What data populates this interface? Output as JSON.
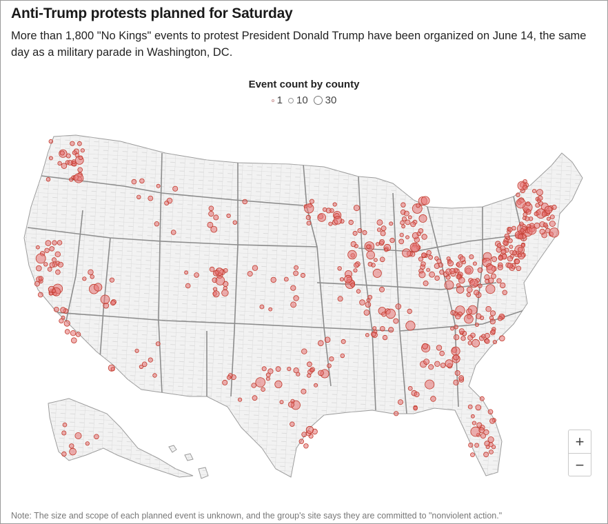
{
  "header": {
    "title": "Anti-Trump protests planned for Saturday",
    "subtitle": "More than 1,800 \"No Kings\" events to protest President Donald Trump have been organized on June 14, the same day as a military parade in Washington, DC."
  },
  "legend": {
    "title": "Event count by county",
    "items": [
      {
        "label": "1",
        "size": 1
      },
      {
        "label": "10",
        "size": 10
      },
      {
        "label": "30",
        "size": 30
      }
    ]
  },
  "colors": {
    "dot_fill": "#e06666",
    "dot_stroke": "#c0392b",
    "land": "#f2f2f2",
    "county_lines": "#cfcfcf",
    "state_lines": "#8c8c8c"
  },
  "zoom": {
    "in_label": "+",
    "out_label": "−"
  },
  "note": "Note: The size and scope of each planned event is unknown, and the group's site says they are committed to \"nonviolent action.\""
}
